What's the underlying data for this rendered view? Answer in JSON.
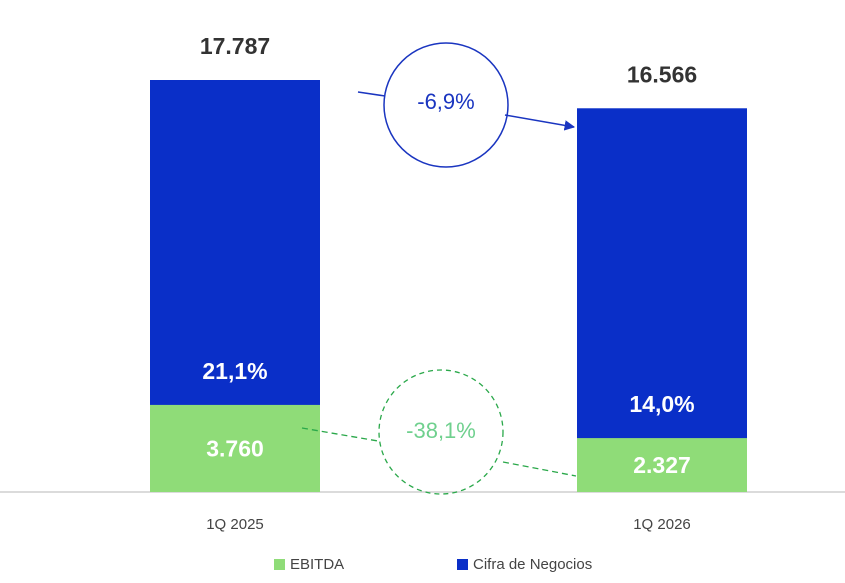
{
  "chart_data": {
    "type": "bar",
    "categories": [
      "1Q 2025",
      "1Q 2026"
    ],
    "series": [
      {
        "name": "EBITDA",
        "color": "#8fdc78",
        "values": [
          3760,
          2327
        ],
        "value_labels": [
          "3.760",
          "2.327"
        ]
      },
      {
        "name": "Cifra de Negocios",
        "color": "#0a2fc8",
        "values": [
          17787,
          16566
        ],
        "value_labels": [
          "17.787",
          "16.566"
        ]
      }
    ],
    "margins": [
      "21,1%",
      "14,0%"
    ],
    "annotations": [
      "-6,9%",
      "-38,1%"
    ]
  }
}
